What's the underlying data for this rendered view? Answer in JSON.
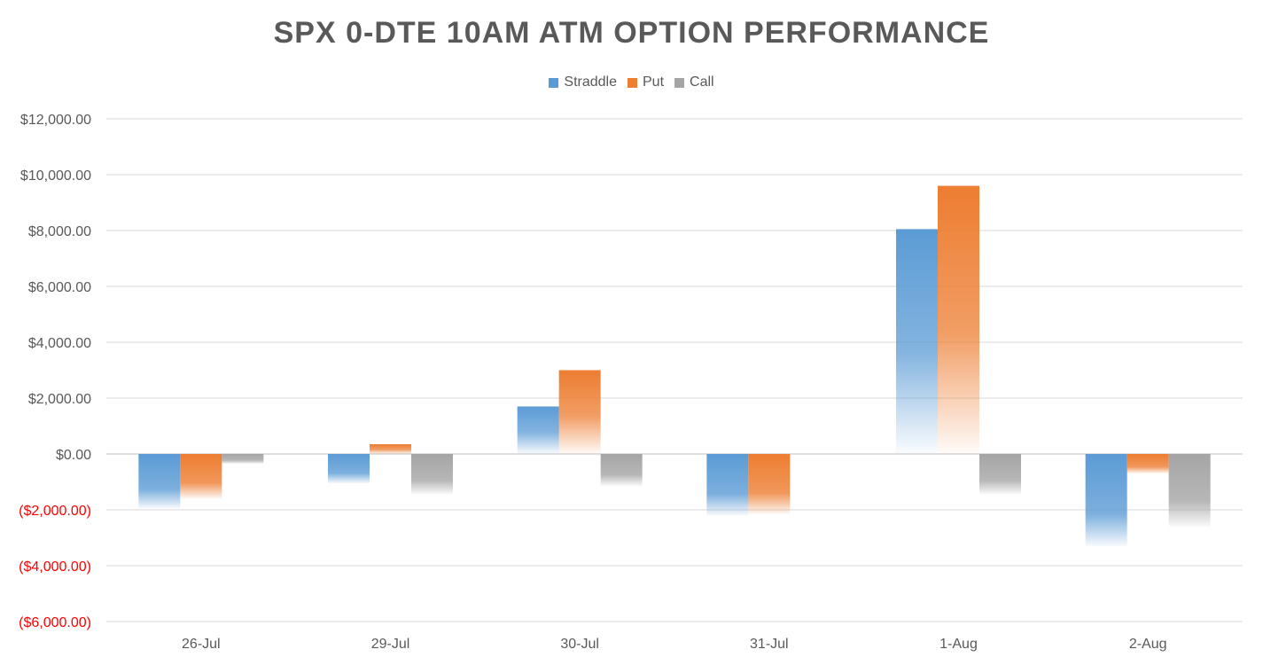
{
  "chart_data": {
    "type": "bar",
    "title": "SPX 0-DTE 10AM ATM OPTION PERFORMANCE",
    "categories": [
      "26-Jul",
      "29-Jul",
      "30-Jul",
      "31-Jul",
      "1-Aug",
      "2-Aug"
    ],
    "series": [
      {
        "name": "Straddle",
        "color": "#5b9bd5",
        "values": [
          -1950,
          -1050,
          1700,
          -2200,
          8050,
          -3300
        ]
      },
      {
        "name": "Put",
        "color": "#ed7d31",
        "values": [
          -1600,
          350,
          3000,
          -2150,
          9600,
          -700
        ]
      },
      {
        "name": "Call",
        "color": "#a5a5a5",
        "values": [
          -350,
          -1450,
          -1150,
          0,
          -1450,
          -2600
        ]
      }
    ],
    "ylim": [
      -6000,
      12000
    ],
    "yticks": [
      12000,
      10000,
      8000,
      6000,
      4000,
      2000,
      0,
      -2000,
      -4000,
      -6000
    ],
    "ytick_labels": [
      "$12,000.00",
      "$10,000.00",
      "$8,000.00",
      "$6,000.00",
      "$4,000.00",
      "$2,000.00",
      "$0.00",
      "($2,000.00)",
      "($4,000.00)",
      "($6,000.00)"
    ],
    "xlabel": "",
    "ylabel": "",
    "grid": true,
    "legend_position": "top"
  }
}
